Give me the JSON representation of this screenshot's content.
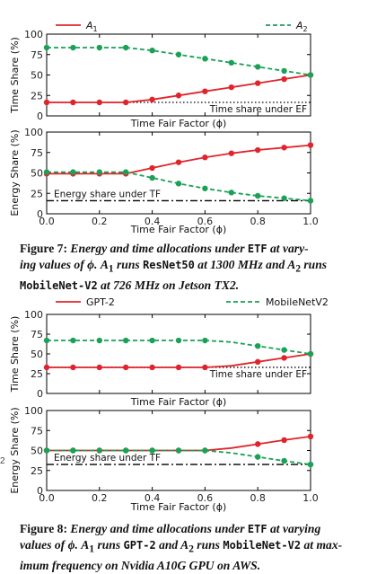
{
  "colors": {
    "a1": "#e0242b",
    "a2": "#1aa156",
    "ref": "#000000"
  },
  "side_fragment": "2",
  "figure7": {
    "caption": {
      "label": "Figure 7:",
      "l1": "Energy and time allocations under",
      "etf": "ETF",
      "l1b": "at vary-",
      "l2a": "ing values of ",
      "phi": "ϕ",
      "l2b": ". ",
      "a1": "A",
      "a1sub": "1",
      "l2c": " runs ",
      "model1": "ResNet50",
      "l2d": " at 1300 MHz and ",
      "a2": "A",
      "a2sub": "2",
      "l2e": " runs",
      "model2": "MobileNet-V2",
      "l3": " at 726 MHz on Jetson TX2."
    }
  },
  "figure8": {
    "caption": {
      "label": "Figure 8:",
      "l1": "Energy and time allocations under",
      "etf": "ETF",
      "l1b": "at varying",
      "l2a": "values of ",
      "phi": "ϕ",
      "l2b": ". ",
      "a1": "A",
      "a1sub": "1",
      "l2c": " runs ",
      "model1": "GPT-2",
      "l2d": " and ",
      "a2": "A",
      "a2sub": "2",
      "l2e": " runs ",
      "model2": "MobileNet-V2",
      "l2f": " at max-",
      "l3": "imum frequency on Nvidia A10G GPU on AWS."
    }
  },
  "chart_data": [
    {
      "id": "fig7-time",
      "type": "line",
      "legend": {
        "a1": "A1",
        "a2": "A2",
        "style": "math"
      },
      "ylabel": "Time Share (%)",
      "xlabel": "",
      "xlim": [
        0,
        1
      ],
      "ylim": [
        0,
        100
      ],
      "xticks": [],
      "xtick_labels": [],
      "yticks": [
        0,
        25,
        50,
        75,
        100
      ],
      "ytick_labels": [
        "0",
        "25",
        "50",
        "75",
        "100"
      ],
      "x": [
        0.0,
        0.1,
        0.2,
        0.3,
        0.4,
        0.5,
        0.6,
        0.7,
        0.8,
        0.9,
        1.0
      ],
      "series": [
        {
          "key": "a1",
          "values": [
            16.5,
            16.5,
            16.5,
            16.5,
            20,
            25,
            30,
            35,
            40,
            45,
            50
          ],
          "markers": [
            0,
            1,
            2,
            3,
            4,
            5,
            6,
            7,
            8,
            9,
            10
          ]
        },
        {
          "key": "a2",
          "values": [
            83.5,
            83.5,
            83.5,
            83.5,
            80,
            75,
            70,
            65,
            60,
            55,
            50
          ],
          "markers": [
            0,
            1,
            2,
            3,
            4,
            5,
            6,
            7,
            8,
            9,
            10
          ]
        }
      ],
      "ref": {
        "y": 16.5,
        "style": "dotted",
        "label": "Time share under EF"
      }
    },
    {
      "id": "fig7-energy",
      "type": "line",
      "ylabel": "Energy Share (%)",
      "xlabel": "Time Fair Factor (ϕ)",
      "xlim": [
        0,
        1
      ],
      "ylim": [
        0,
        100
      ],
      "xticks": [
        0,
        0.2,
        0.4,
        0.6,
        0.8,
        1.0
      ],
      "xtick_labels": [
        "0.0",
        "0.2",
        "0.4",
        "0.6",
        "0.8",
        "1.0"
      ],
      "yticks": [
        0,
        25,
        50,
        75,
        100
      ],
      "ytick_labels": [
        "0",
        "25",
        "50",
        "75",
        "100"
      ],
      "x": [
        0.0,
        0.1,
        0.2,
        0.3,
        0.4,
        0.5,
        0.6,
        0.7,
        0.8,
        0.9,
        1.0
      ],
      "series": [
        {
          "key": "a1",
          "values": [
            49,
            49,
            49,
            49,
            56,
            63,
            69,
            74,
            78,
            81,
            84
          ],
          "markers": [
            0,
            1,
            2,
            3,
            4,
            5,
            6,
            7,
            8,
            9,
            10
          ]
        },
        {
          "key": "a2",
          "values": [
            51,
            51,
            51,
            51,
            44,
            37,
            31,
            26,
            22,
            19,
            16
          ],
          "markers": [
            0,
            1,
            2,
            3,
            4,
            5,
            6,
            7,
            8,
            9,
            10
          ]
        }
      ],
      "ref": {
        "y": 16,
        "style": "dashdot",
        "label": "Energy share under TF"
      }
    },
    {
      "id": "fig8-time",
      "type": "line",
      "legend": {
        "a1": "GPT-2",
        "a2": "MobileNetV2",
        "style": "plain"
      },
      "ylabel": "Time Share (%)",
      "xlabel": "Time Fair Factor (ϕ)",
      "xlim": [
        0,
        1
      ],
      "ylim": [
        0,
        100
      ],
      "xticks": [],
      "xtick_labels": [],
      "yticks": [
        0,
        25,
        50,
        75,
        100
      ],
      "ytick_labels": [
        "0",
        "25",
        "50",
        "75",
        "100"
      ],
      "x": [
        0.0,
        0.1,
        0.2,
        0.3,
        0.4,
        0.5,
        0.6,
        0.7,
        0.8,
        0.9,
        1.0
      ],
      "series": [
        {
          "key": "a1",
          "values": [
            33,
            33,
            33,
            33,
            33,
            33,
            33,
            35,
            40,
            45,
            50
          ],
          "markers": [
            0,
            1,
            2,
            3,
            4,
            5,
            6,
            8,
            9,
            10
          ]
        },
        {
          "key": "a2",
          "values": [
            67,
            67,
            67,
            67,
            67,
            67,
            67,
            65,
            60,
            55,
            50
          ],
          "markers": [
            0,
            1,
            2,
            3,
            4,
            5,
            6,
            8,
            9,
            10
          ]
        }
      ],
      "ref": {
        "y": 33,
        "style": "dotted",
        "label": "Time share under EF"
      }
    },
    {
      "id": "fig8-energy",
      "type": "line",
      "ylabel": "Energy Share (%)",
      "xlabel": "Time Fair Factor (ϕ)",
      "xlim": [
        0,
        1
      ],
      "ylim": [
        0,
        100
      ],
      "xticks": [
        0,
        0.2,
        0.4,
        0.6,
        0.8,
        1.0
      ],
      "xtick_labels": [
        "0.0",
        "0.2",
        "0.4",
        "0.6",
        "0.8",
        "1.0"
      ],
      "yticks": [
        0,
        25,
        50,
        75,
        100
      ],
      "ytick_labels": [
        "0",
        "25",
        "50",
        "75",
        "100"
      ],
      "x": [
        0.0,
        0.1,
        0.2,
        0.3,
        0.4,
        0.5,
        0.6,
        0.7,
        0.8,
        0.9,
        1.0
      ],
      "series": [
        {
          "key": "a1",
          "values": [
            50,
            50,
            50,
            50,
            50,
            50,
            50,
            53,
            58,
            63,
            67.5
          ],
          "markers": [
            0,
            1,
            2,
            3,
            4,
            5,
            6,
            8,
            9,
            10
          ]
        },
        {
          "key": "a2",
          "values": [
            50,
            50,
            50,
            50,
            50,
            50,
            50,
            47,
            42,
            37,
            32.5
          ],
          "markers": [
            0,
            1,
            2,
            3,
            4,
            5,
            6,
            8,
            9,
            10
          ]
        }
      ],
      "ref": {
        "y": 32.5,
        "style": "dashdot",
        "label": "Energy share under TF"
      }
    }
  ]
}
